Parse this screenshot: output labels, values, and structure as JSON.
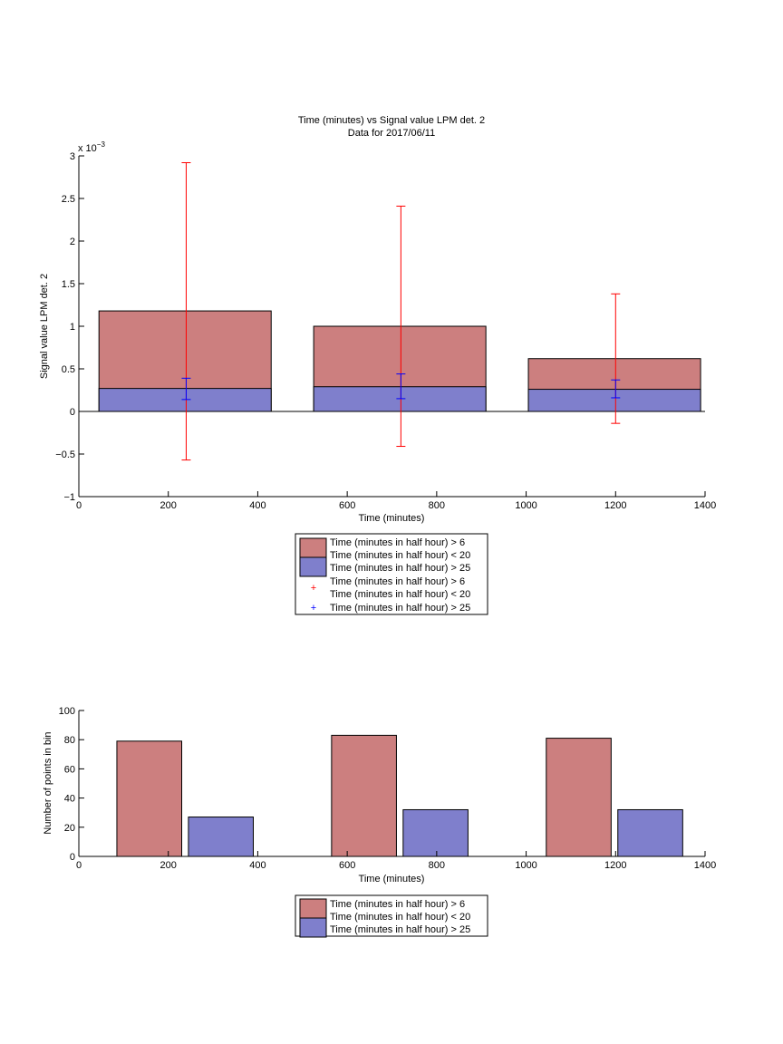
{
  "chart_data": [
    {
      "type": "bar",
      "title": "Time (minutes) vs Signal value LPM det. 2",
      "subtitle": "Data for 2017/06/11",
      "xlabel": "Time (minutes)",
      "ylabel": "Signal value LPM det. 2",
      "exponent_label": "x 10",
      "exponent_power": "−3",
      "xlim": [
        0,
        1400
      ],
      "ylim": [
        -1,
        3
      ],
      "xticks": [
        "0",
        "200",
        "400",
        "600",
        "800",
        "1000",
        "1200",
        "1400"
      ],
      "yticks": [
        "−1",
        "−0.5",
        "0",
        "0.5",
        "1",
        "1.5",
        "2",
        "2.5",
        "3"
      ],
      "xtick_values": [
        0,
        200,
        400,
        600,
        800,
        1000,
        1200,
        1400
      ],
      "ytick_values": [
        -1,
        -0.5,
        0,
        0.5,
        1,
        1.5,
        2,
        2.5,
        3
      ],
      "value_scale": 0.001,
      "bar_x_ranges": [
        [
          45,
          430
        ],
        [
          525,
          910
        ],
        [
          1005,
          1390
        ]
      ],
      "series": [
        {
          "name": "Time (minutes in half hour) > 6",
          "name_line2": "Time (minutes in half hour) < 20",
          "color": "#cc7f7f",
          "values": [
            1.18,
            1.0,
            0.62
          ]
        },
        {
          "name": "Time (minutes in half hour) > 25",
          "color": "#7f7fcc",
          "values": [
            0.27,
            0.29,
            0.26
          ]
        }
      ],
      "errorbars": [
        {
          "name": "Time (minutes in half hour) > 6",
          "name_line2": "Time (minutes in half hour) < 20",
          "color": "#ff0000",
          "x": [
            240,
            720,
            1200
          ],
          "low": [
            -0.57,
            -0.41,
            -0.14
          ],
          "high": [
            2.92,
            2.41,
            1.38
          ]
        },
        {
          "name": "Time (minutes in half hour) > 25",
          "color": "#0000ff",
          "x": [
            240,
            720,
            1200
          ],
          "low": [
            0.14,
            0.15,
            0.16
          ],
          "high": [
            0.39,
            0.44,
            0.37
          ]
        }
      ],
      "legend": "below"
    },
    {
      "type": "bar",
      "xlabel": "Time (minutes)",
      "ylabel": "Number of points in bin",
      "xlim": [
        0,
        1400
      ],
      "ylim": [
        0,
        100
      ],
      "xticks": [
        "0",
        "200",
        "400",
        "600",
        "800",
        "1000",
        "1200",
        "1400"
      ],
      "yticks": [
        "0",
        "20",
        "40",
        "60",
        "80",
        "100"
      ],
      "xtick_values": [
        0,
        200,
        400,
        600,
        800,
        1000,
        1200,
        1400
      ],
      "ytick_values": [
        0,
        20,
        40,
        60,
        80,
        100
      ],
      "series": [
        {
          "name": "Time (minutes in half hour) > 6",
          "name_line2": "Time (minutes in half hour) < 20",
          "color": "#cc7f7f",
          "x_ranges": [
            [
              85,
              230
            ],
            [
              565,
              710
            ],
            [
              1045,
              1190
            ]
          ],
          "values": [
            79,
            83,
            81
          ]
        },
        {
          "name": "Time (minutes in half hour) > 25",
          "color": "#7f7fcc",
          "x_ranges": [
            [
              245,
              390
            ],
            [
              725,
              870
            ],
            [
              1205,
              1350
            ]
          ],
          "values": [
            27,
            32,
            32
          ]
        }
      ],
      "legend": "below"
    }
  ]
}
